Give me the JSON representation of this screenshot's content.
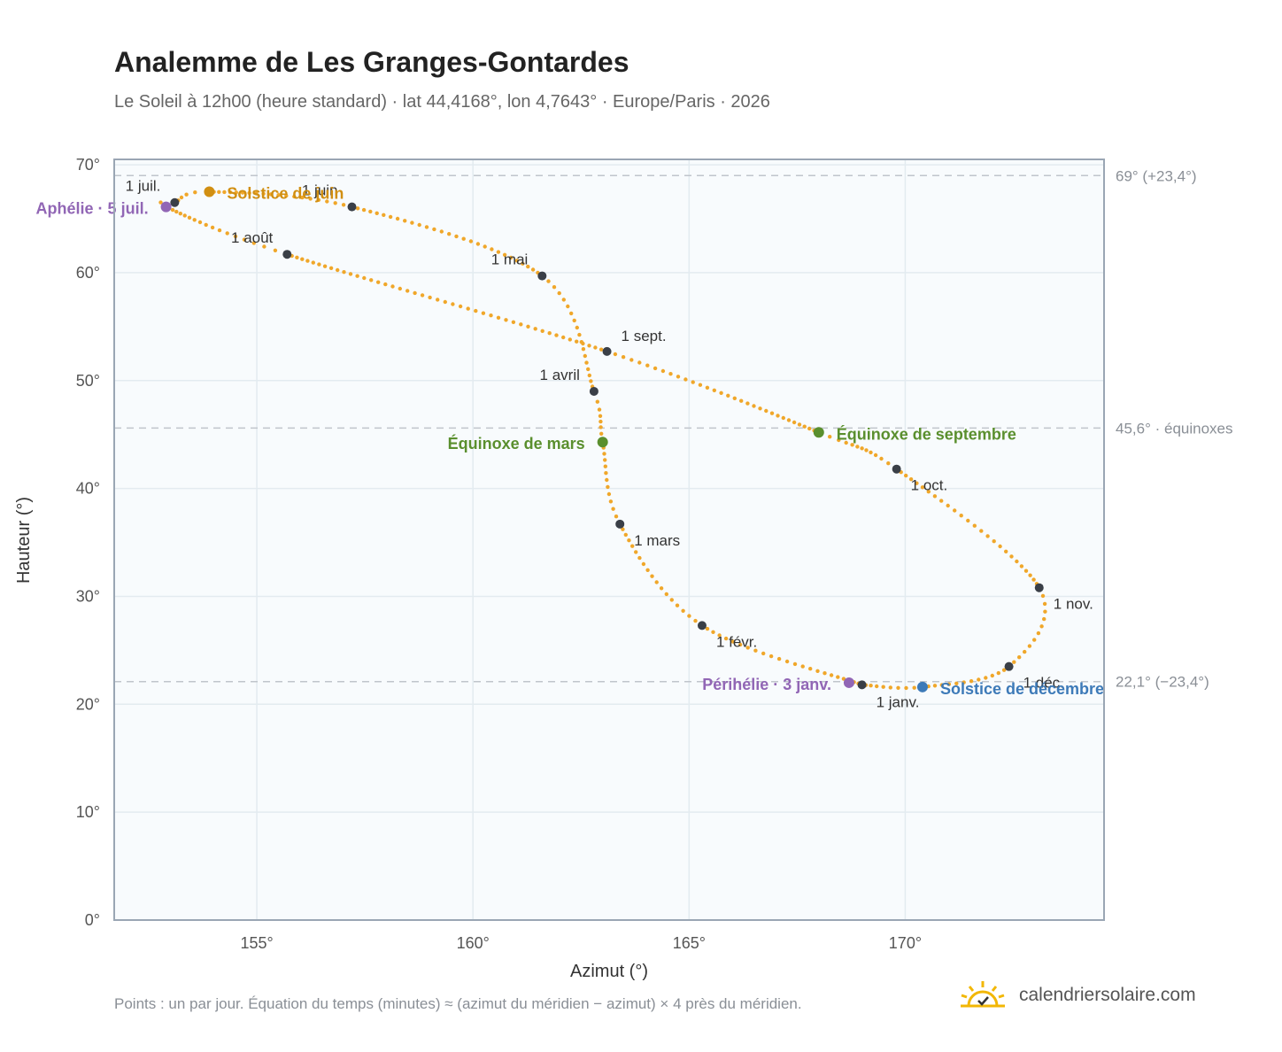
{
  "header": {
    "title": "Analemme de Les Granges-Gontardes",
    "subtitle": "Le Soleil à 12h00 (heure standard) · lat 44,4168°, lon 4,7643° · Europe/Paris · 2026"
  },
  "footer": {
    "note": "Points : un par jour. Équation du temps (minutes) ≈ (azimut du méridien − azimut) × 4 près du méridien.",
    "brand": "calendriersolaire.com"
  },
  "colors": {
    "curve": "#f0a72a",
    "month_dot": "#3a3f47",
    "solstice_june": "#d18f12",
    "equinox": "#5a8f2e",
    "solstice_december": "#3d7ab8",
    "apsis": "#9166b5",
    "grid": "#e3ebf0",
    "plot_bg": "#f8fbfd",
    "frame": "#9aa6b4",
    "refline": "#c0c5cc"
  },
  "chart_data": {
    "type": "scatter",
    "xlabel": "Azimut (°)",
    "ylabel": "Hauteur (°)",
    "xlim": [
      151.7,
      174.6
    ],
    "ylim": [
      0,
      70.5
    ],
    "x_ticks": [
      155,
      160,
      165,
      170
    ],
    "x_tick_labels": [
      "155°",
      "160°",
      "165°",
      "170°"
    ],
    "y_ticks": [
      0,
      10,
      20,
      30,
      40,
      50,
      60,
      70
    ],
    "y_tick_labels": [
      "0°",
      "10°",
      "20°",
      "30°",
      "40°",
      "50°",
      "60°",
      "70°"
    ],
    "grid": true,
    "series": [
      {
        "points_per": "day",
        "anchor_points": [
          {
            "x": 169.0,
            "y": 21.8
          },
          {
            "x": 165.3,
            "y": 27.3
          },
          {
            "x": 163.4,
            "y": 36.7
          },
          {
            "x": 163.0,
            "y": 44.3
          },
          {
            "x": 162.8,
            "y": 49.0
          },
          {
            "x": 161.6,
            "y": 59.7
          },
          {
            "x": 157.2,
            "y": 66.1
          },
          {
            "x": 153.9,
            "y": 67.5
          },
          {
            "x": 153.1,
            "y": 66.5
          },
          {
            "x": 152.9,
            "y": 66.1
          },
          {
            "x": 155.7,
            "y": 61.7
          },
          {
            "x": 163.1,
            "y": 52.7
          },
          {
            "x": 168.0,
            "y": 45.2
          },
          {
            "x": 169.8,
            "y": 41.8
          },
          {
            "x": 173.1,
            "y": 30.8
          },
          {
            "x": 172.4,
            "y": 23.5
          },
          {
            "x": 170.4,
            "y": 21.6
          },
          {
            "x": 169.0,
            "y": 21.8
          }
        ]
      }
    ],
    "month_markers": [
      {
        "label": "1 janv.",
        "x": 169.0,
        "y": 21.8,
        "anchor": "start",
        "dx": 16,
        "dy": 25
      },
      {
        "label": "1 févr.",
        "x": 165.3,
        "y": 27.3,
        "anchor": "start",
        "dx": 16,
        "dy": 24
      },
      {
        "label": "1 mars",
        "x": 163.4,
        "y": 36.7,
        "anchor": "start",
        "dx": 16,
        "dy": 24
      },
      {
        "label": "1 avril",
        "x": 162.8,
        "y": 49.0,
        "anchor": "end",
        "dx": -16,
        "dy": -13
      },
      {
        "label": "1 mai",
        "x": 161.6,
        "y": 59.7,
        "anchor": "end",
        "dx": -16,
        "dy": -13
      },
      {
        "label": "1 juin",
        "x": 157.2,
        "y": 66.1,
        "anchor": "end",
        "dx": -16,
        "dy": -13
      },
      {
        "label": "1 juil.",
        "x": 153.1,
        "y": 66.5,
        "anchor": "end",
        "dx": -16,
        "dy": -13
      },
      {
        "label": "1 août",
        "x": 155.7,
        "y": 61.7,
        "anchor": "end",
        "dx": -16,
        "dy": -13
      },
      {
        "label": "1 sept.",
        "x": 163.1,
        "y": 52.7,
        "anchor": "start",
        "dx": 16,
        "dy": -12
      },
      {
        "label": "1 oct.",
        "x": 169.8,
        "y": 41.8,
        "anchor": "start",
        "dx": 16,
        "dy": 24
      },
      {
        "label": "1 nov.",
        "x": 173.1,
        "y": 30.8,
        "anchor": "start",
        "dx": 16,
        "dy": 24
      },
      {
        "label": "1 déc.",
        "x": 172.4,
        "y": 23.5,
        "anchor": "start",
        "dx": 16,
        "dy": 24
      }
    ],
    "events": [
      {
        "label": "Solstice de juin",
        "x": 153.9,
        "y": 67.5,
        "color_key": "solstice_june",
        "anchor": "start",
        "dx": 20,
        "dy": 8
      },
      {
        "label": "Aphélie · 5 juil.",
        "x": 152.9,
        "y": 66.1,
        "color_key": "apsis",
        "anchor": "end",
        "dx": -20,
        "dy": 8
      },
      {
        "label": "Équinoxe de mars",
        "x": 163.0,
        "y": 44.3,
        "color_key": "equinox",
        "anchor": "end",
        "dx": -20,
        "dy": 8
      },
      {
        "label": "Équinoxe de septembre",
        "x": 168.0,
        "y": 45.2,
        "color_key": "equinox",
        "anchor": "start",
        "dx": 20,
        "dy": 8
      },
      {
        "label": "Périhélie · 3 janv.",
        "x": 168.7,
        "y": 22.0,
        "color_key": "apsis",
        "anchor": "end",
        "dx": -20,
        "dy": 8
      },
      {
        "label": "Solstice de décembre",
        "x": 170.4,
        "y": 21.6,
        "color_key": "solstice_december",
        "anchor": "start",
        "dx": 20,
        "dy": 8
      }
    ],
    "reference_lines": [
      {
        "y": 69.0,
        "label": "69° (+23,4°)"
      },
      {
        "y": 45.6,
        "label": "45,6° · équinoxes"
      },
      {
        "y": 22.1,
        "label": "22,1° (−23,4°)"
      }
    ]
  }
}
